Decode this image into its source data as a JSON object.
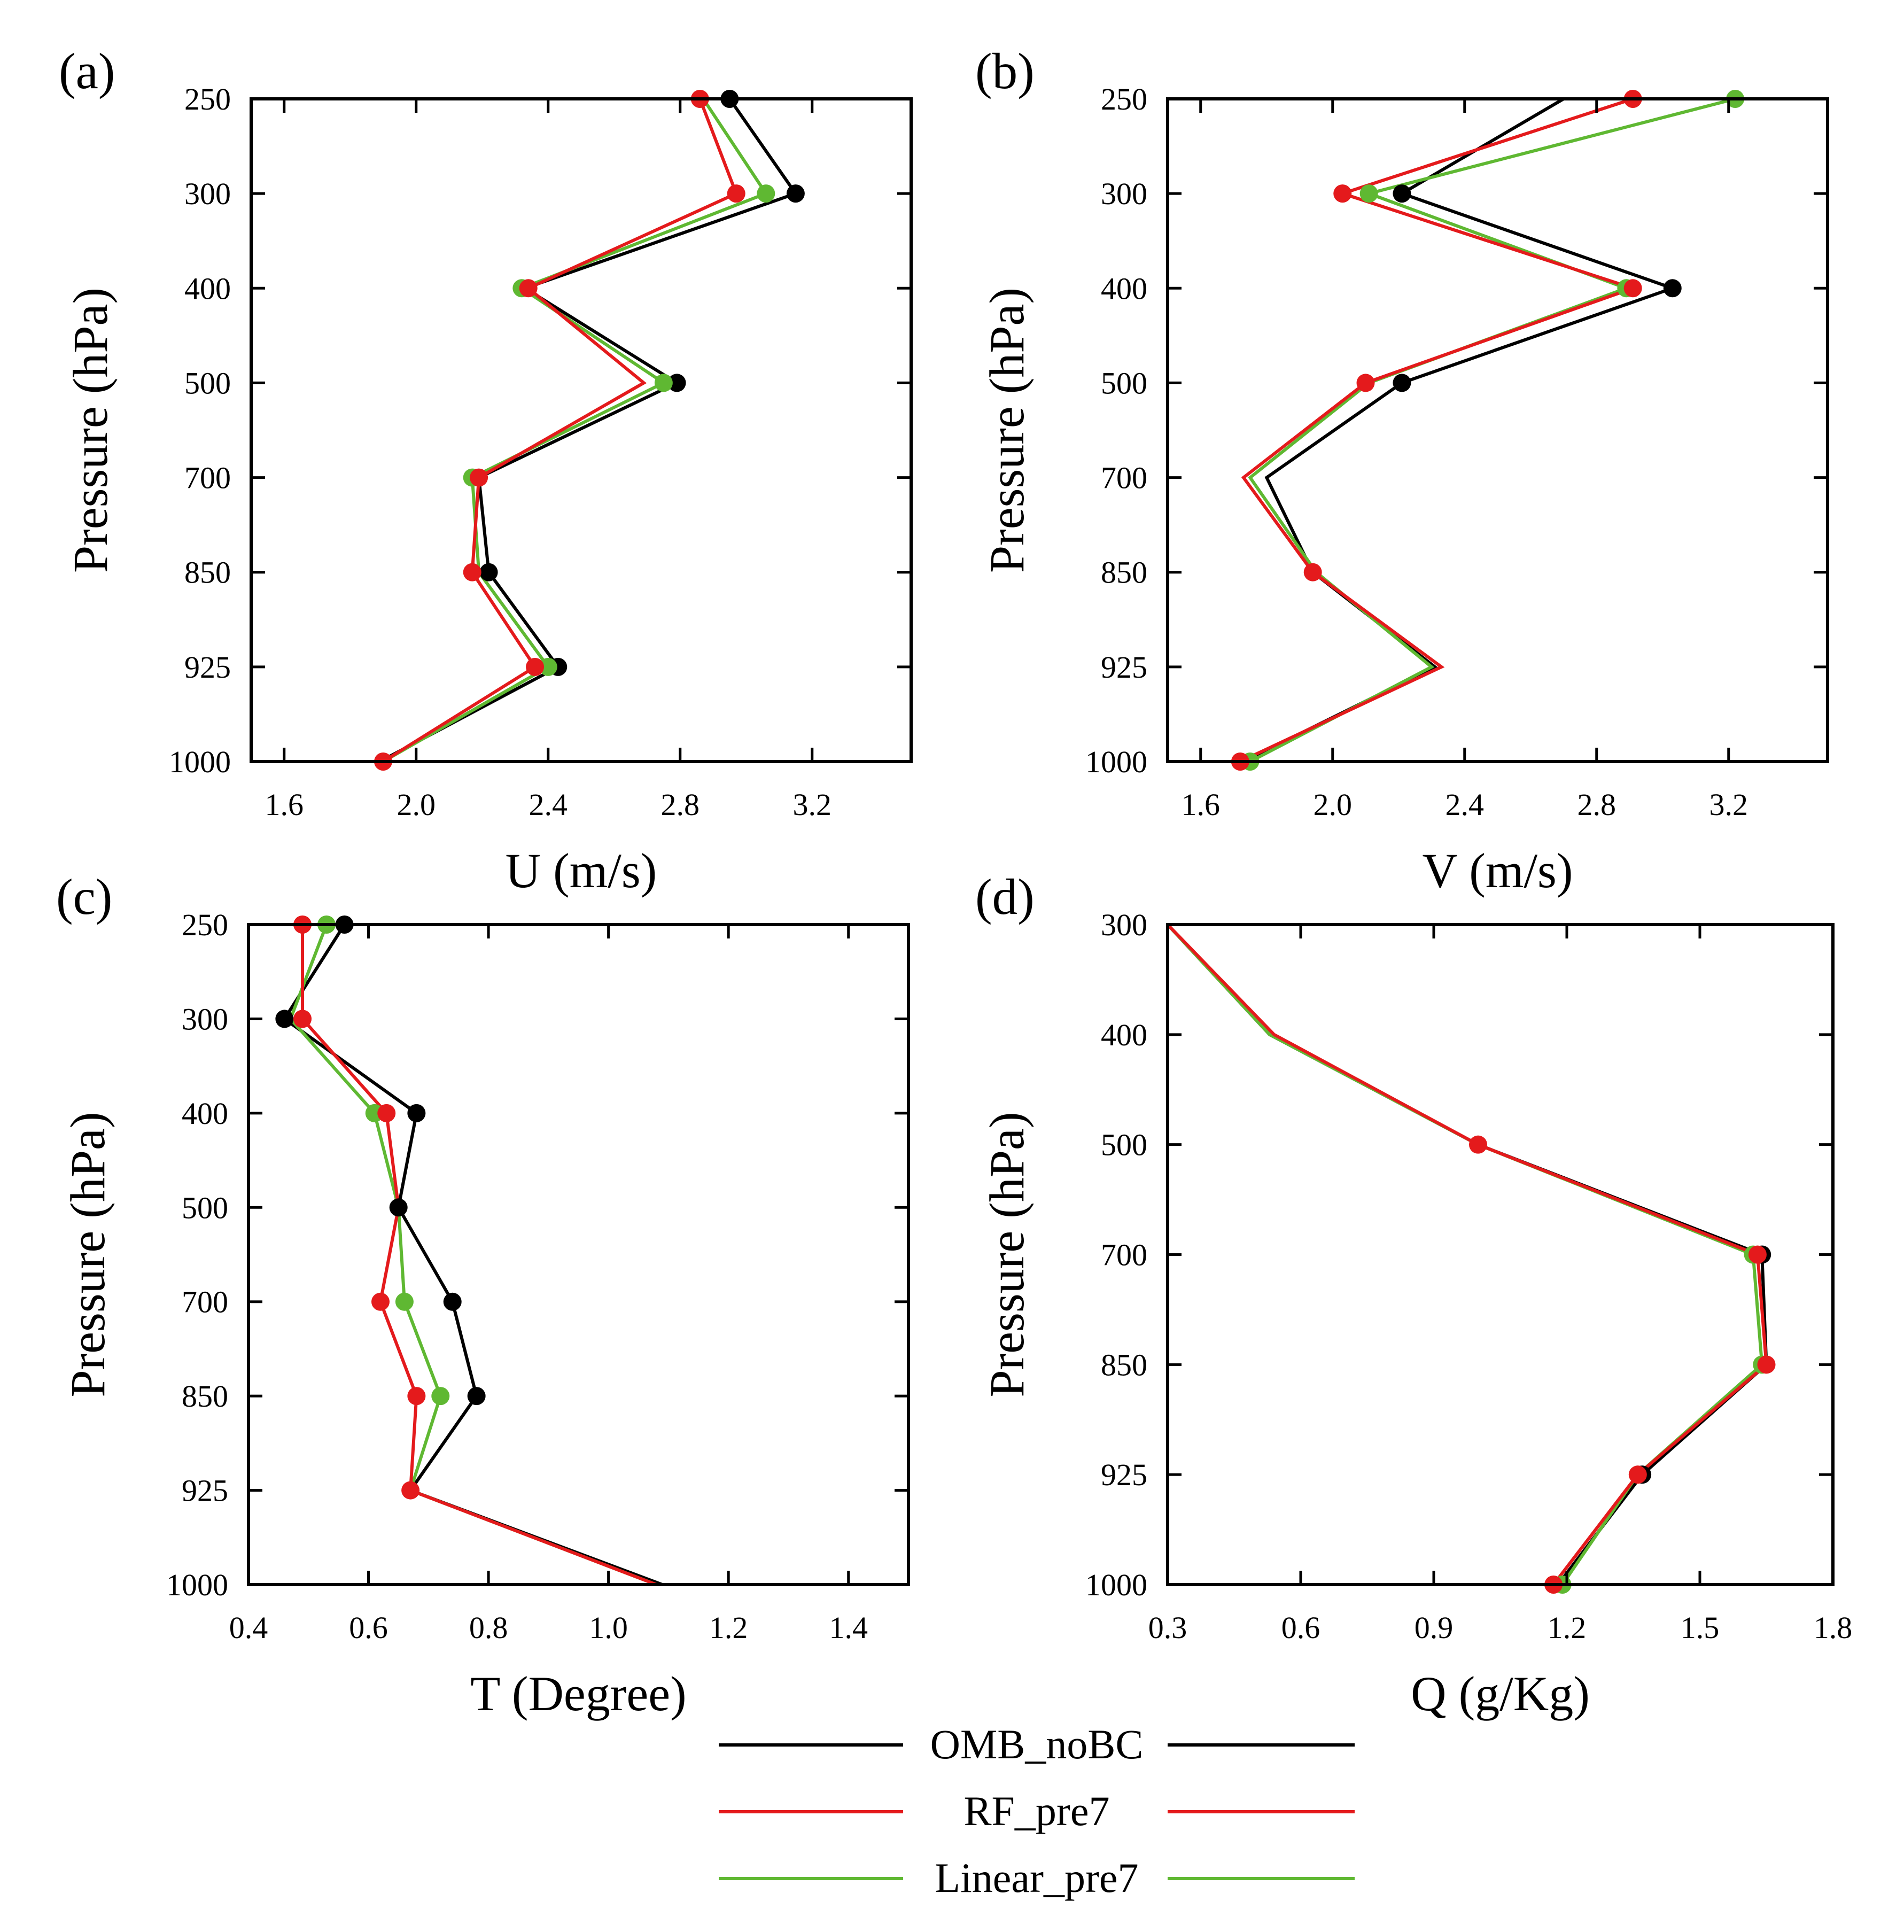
{
  "legend": {
    "entries": [
      {
        "label": "OMB_noBC",
        "color": "#000000"
      },
      {
        "label": "RF_pre7",
        "color": "#e41a1c"
      },
      {
        "label": "Linear_pre7",
        "color": "#5fb832"
      }
    ]
  },
  "chart_data": [
    {
      "type": "line",
      "panel_label": "(a)",
      "xlabel": "U (m/s)",
      "ylabel": "Pressure (hPa)",
      "xlim": [
        1.5,
        3.5
      ],
      "xticks": [
        1.6,
        2.0,
        2.4,
        2.8,
        3.2
      ],
      "xtick_labels": [
        "1.6",
        "2.0",
        "2.4",
        "2.8",
        "3.2"
      ],
      "levels": [
        250,
        300,
        400,
        500,
        700,
        850,
        925,
        1000
      ],
      "level_labels": [
        "250",
        "300",
        "400",
        "500",
        "700",
        "850",
        "925",
        "1000"
      ],
      "series": [
        {
          "name": "OMB_noBC",
          "color": "#000000",
          "values": [
            2.95,
            3.15,
            2.33,
            2.79,
            2.19,
            2.22,
            2.43,
            1.89
          ]
        },
        {
          "name": "Linear_pre7",
          "color": "#5fb832",
          "values": [
            2.87,
            3.06,
            2.32,
            2.75,
            2.17,
            2.19,
            2.4,
            1.9
          ]
        },
        {
          "name": "RF_pre7",
          "color": "#e41a1c",
          "values": [
            2.86,
            2.97,
            2.34,
            2.69,
            2.19,
            2.17,
            2.36,
            1.9
          ]
        }
      ],
      "markers": [
        {
          "series": "OMB_noBC",
          "color": "#000000",
          "points": [
            [
              2.95,
              250
            ],
            [
              3.15,
              300
            ],
            [
              2.79,
              500
            ],
            [
              2.22,
              850
            ],
            [
              2.43,
              925
            ]
          ]
        },
        {
          "series": "Linear_pre7",
          "color": "#5fb832",
          "points": [
            [
              3.06,
              300
            ],
            [
              2.32,
              400
            ],
            [
              2.75,
              500
            ],
            [
              2.17,
              700
            ],
            [
              2.4,
              925
            ]
          ]
        },
        {
          "series": "RF_pre7",
          "color": "#e41a1c",
          "points": [
            [
              2.86,
              250
            ],
            [
              2.97,
              300
            ],
            [
              2.34,
              400
            ],
            [
              2.19,
              700
            ],
            [
              2.17,
              850
            ],
            [
              2.36,
              925
            ],
            [
              1.9,
              1000
            ]
          ]
        }
      ]
    },
    {
      "type": "line",
      "panel_label": "(b)",
      "xlabel": "V (m/s)",
      "ylabel": "Pressure (hPa)",
      "xlim": [
        1.5,
        3.5
      ],
      "xticks": [
        1.6,
        2.0,
        2.4,
        2.8,
        3.2
      ],
      "xtick_labels": [
        "1.6",
        "2.0",
        "2.4",
        "2.8",
        "3.2"
      ],
      "levels": [
        250,
        300,
        400,
        500,
        700,
        850,
        925,
        1000
      ],
      "level_labels": [
        "250",
        "300",
        "400",
        "500",
        "700",
        "850",
        "925",
        "1000"
      ],
      "series": [
        {
          "name": "OMB_noBC",
          "color": "#000000",
          "values": [
            2.7,
            2.21,
            3.03,
            2.21,
            1.8,
            1.94,
            2.31,
            1.73
          ]
        },
        {
          "name": "Linear_pre7",
          "color": "#5fb832",
          "values": [
            3.22,
            2.11,
            2.89,
            2.11,
            1.75,
            1.95,
            2.3,
            1.75
          ]
        },
        {
          "name": "RF_pre7",
          "color": "#e41a1c",
          "values": [
            2.91,
            2.03,
            2.91,
            2.1,
            1.73,
            1.94,
            2.33,
            1.72
          ]
        }
      ],
      "markers": [
        {
          "series": "OMB_noBC",
          "color": "#000000",
          "points": [
            [
              2.21,
              300
            ],
            [
              3.03,
              400
            ],
            [
              2.21,
              500
            ]
          ]
        },
        {
          "series": "Linear_pre7",
          "color": "#5fb832",
          "points": [
            [
              3.22,
              250
            ],
            [
              2.11,
              300
            ],
            [
              2.89,
              400
            ],
            [
              1.75,
              1000
            ]
          ]
        },
        {
          "series": "RF_pre7",
          "color": "#e41a1c",
          "points": [
            [
              2.91,
              250
            ],
            [
              2.03,
              300
            ],
            [
              2.91,
              400
            ],
            [
              2.1,
              500
            ],
            [
              1.94,
              850
            ],
            [
              1.72,
              1000
            ]
          ]
        }
      ]
    },
    {
      "type": "line",
      "panel_label": "(c)",
      "xlabel": "T (Degree)",
      "ylabel": "Pressure (hPa)",
      "xlim": [
        0.4,
        1.5
      ],
      "xticks": [
        0.4,
        0.6,
        0.8,
        1.0,
        1.2,
        1.4
      ],
      "xtick_labels": [
        "0.4",
        "0.6",
        "0.8",
        "1.0",
        "1.2",
        "1.4"
      ],
      "levels": [
        250,
        300,
        400,
        500,
        700,
        850,
        925,
        1000
      ],
      "level_labels": [
        "250",
        "300",
        "400",
        "500",
        "700",
        "850",
        "925",
        "1000"
      ],
      "series": [
        {
          "name": "OMB_noBC",
          "color": "#000000",
          "values": [
            0.56,
            0.46,
            0.68,
            0.65,
            0.74,
            0.78,
            0.67,
            1.09
          ]
        },
        {
          "name": "Linear_pre7",
          "color": "#5fb832",
          "values": [
            0.53,
            0.47,
            0.61,
            0.65,
            0.66,
            0.72,
            0.67,
            1.08
          ]
        },
        {
          "name": "RF_pre7",
          "color": "#e41a1c",
          "values": [
            0.49,
            0.49,
            0.63,
            0.65,
            0.62,
            0.68,
            0.67,
            1.08
          ]
        }
      ],
      "markers": [
        {
          "series": "OMB_noBC",
          "color": "#000000",
          "points": [
            [
              0.56,
              250
            ],
            [
              0.46,
              300
            ],
            [
              0.68,
              400
            ],
            [
              0.65,
              500
            ],
            [
              0.74,
              700
            ],
            [
              0.78,
              850
            ]
          ]
        },
        {
          "series": "Linear_pre7",
          "color": "#5fb832",
          "points": [
            [
              0.53,
              250
            ],
            [
              0.61,
              400
            ],
            [
              0.66,
              700
            ],
            [
              0.72,
              850
            ]
          ]
        },
        {
          "series": "RF_pre7",
          "color": "#e41a1c",
          "points": [
            [
              0.49,
              250
            ],
            [
              0.49,
              300
            ],
            [
              0.63,
              400
            ],
            [
              0.62,
              700
            ],
            [
              0.68,
              850
            ],
            [
              0.67,
              925
            ]
          ]
        }
      ]
    },
    {
      "type": "line",
      "panel_label": "(d)",
      "xlabel": "Q (g/Kg)",
      "ylabel": "Pressure (hPa)",
      "xlim": [
        0.3,
        1.8
      ],
      "xticks": [
        0.3,
        0.6,
        0.9,
        1.2,
        1.5,
        1.8
      ],
      "xtick_labels": [
        "0.3",
        "0.6",
        "0.9",
        "1.2",
        "1.5",
        "1.8"
      ],
      "levels": [
        300,
        400,
        500,
        700,
        850,
        925,
        1000
      ],
      "level_labels": [
        "300",
        "400",
        "500",
        "700",
        "850",
        "925",
        "1000"
      ],
      "series": [
        {
          "name": "OMB_noBC",
          "color": "#000000",
          "values": [
            0.3,
            0.53,
            1.0,
            1.64,
            1.65,
            1.37,
            1.18
          ]
        },
        {
          "name": "Linear_pre7",
          "color": "#5fb832",
          "values": [
            0.3,
            0.53,
            1.0,
            1.62,
            1.64,
            1.36,
            1.19
          ]
        },
        {
          "name": "RF_pre7",
          "color": "#e41a1c",
          "values": [
            0.3,
            0.54,
            1.0,
            1.63,
            1.65,
            1.36,
            1.17
          ]
        }
      ],
      "markers": [
        {
          "series": "OMB_noBC",
          "color": "#000000",
          "points": [
            [
              1.64,
              700
            ],
            [
              1.37,
              925
            ]
          ]
        },
        {
          "series": "Linear_pre7",
          "color": "#5fb832",
          "points": [
            [
              1.62,
              700
            ],
            [
              1.64,
              850
            ],
            [
              1.19,
              1000
            ]
          ]
        },
        {
          "series": "RF_pre7",
          "color": "#e41a1c",
          "points": [
            [
              1.0,
              500
            ],
            [
              1.63,
              700
            ],
            [
              1.65,
              850
            ],
            [
              1.36,
              925
            ],
            [
              1.17,
              1000
            ]
          ]
        }
      ]
    }
  ]
}
